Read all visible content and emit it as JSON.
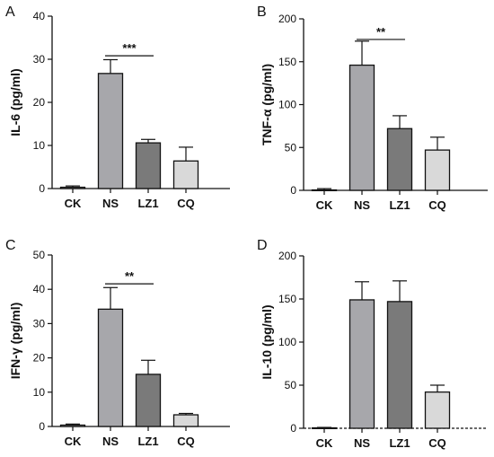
{
  "chart_data": [
    {
      "panel": "A",
      "type": "bar",
      "ylabel": "IL-6 (pg/ml)",
      "categories": [
        "CK",
        "NS",
        "LZ1",
        "CQ"
      ],
      "values": [
        0.3,
        26.7,
        10.6,
        6.4
      ],
      "errors": [
        0.3,
        3.2,
        0.8,
        3.2
      ],
      "ylim": [
        0,
        40
      ],
      "yticks": [
        "0",
        "10",
        "20",
        "30",
        "40"
      ],
      "colors": [
        "#f2f2f2",
        "#a7a7ab",
        "#7a7a7a",
        "#d9d9d9"
      ],
      "significance": {
        "from": 1,
        "to": 2,
        "label": "***",
        "y": 30.8
      },
      "grid": false
    },
    {
      "panel": "B",
      "type": "bar",
      "ylabel": "TNF-α (pg/ml)",
      "categories": [
        "CK",
        "NS",
        "LZ1",
        "CQ"
      ],
      "values": [
        0.5,
        146,
        72,
        47
      ],
      "errors": [
        1.5,
        28,
        15,
        15
      ],
      "ylim": [
        0,
        200
      ],
      "yticks": [
        "0",
        "50",
        "100",
        "150",
        "200"
      ],
      "colors": [
        "#f2f2f2",
        "#a7a7ab",
        "#7a7a7a",
        "#d9d9d9"
      ],
      "significance": {
        "from": 1,
        "to": 2,
        "label": "**",
        "y": 176
      },
      "grid": false
    },
    {
      "panel": "C",
      "type": "bar",
      "ylabel": "IFN-γ (pg/ml)",
      "categories": [
        "CK",
        "NS",
        "LZ1",
        "CQ"
      ],
      "values": [
        0.4,
        34.2,
        15.2,
        3.4
      ],
      "errors": [
        0.3,
        6.3,
        4.1,
        0.4
      ],
      "ylim": [
        0,
        50
      ],
      "yticks": [
        "0",
        "10",
        "20",
        "30",
        "40",
        "50"
      ],
      "colors": [
        "#f2f2f2",
        "#a7a7ab",
        "#7a7a7a",
        "#d9d9d9"
      ],
      "significance": {
        "from": 1,
        "to": 2,
        "label": "**",
        "y": 41.6
      },
      "grid": false
    },
    {
      "panel": "D",
      "type": "bar",
      "ylabel": "IL-10 (pg/ml)",
      "categories": [
        "CK",
        "NS",
        "LZ1",
        "CQ"
      ],
      "values": [
        0.5,
        149,
        147,
        42
      ],
      "errors": [
        0.5,
        21,
        24,
        8
      ],
      "ylim": [
        0,
        200
      ],
      "yticks": [
        "0",
        "50",
        "100",
        "150",
        "200"
      ],
      "colors": [
        "#f2f2f2",
        "#a7a7ab",
        "#7a7a7a",
        "#d9d9d9"
      ],
      "significance": null,
      "grid": false
    }
  ]
}
